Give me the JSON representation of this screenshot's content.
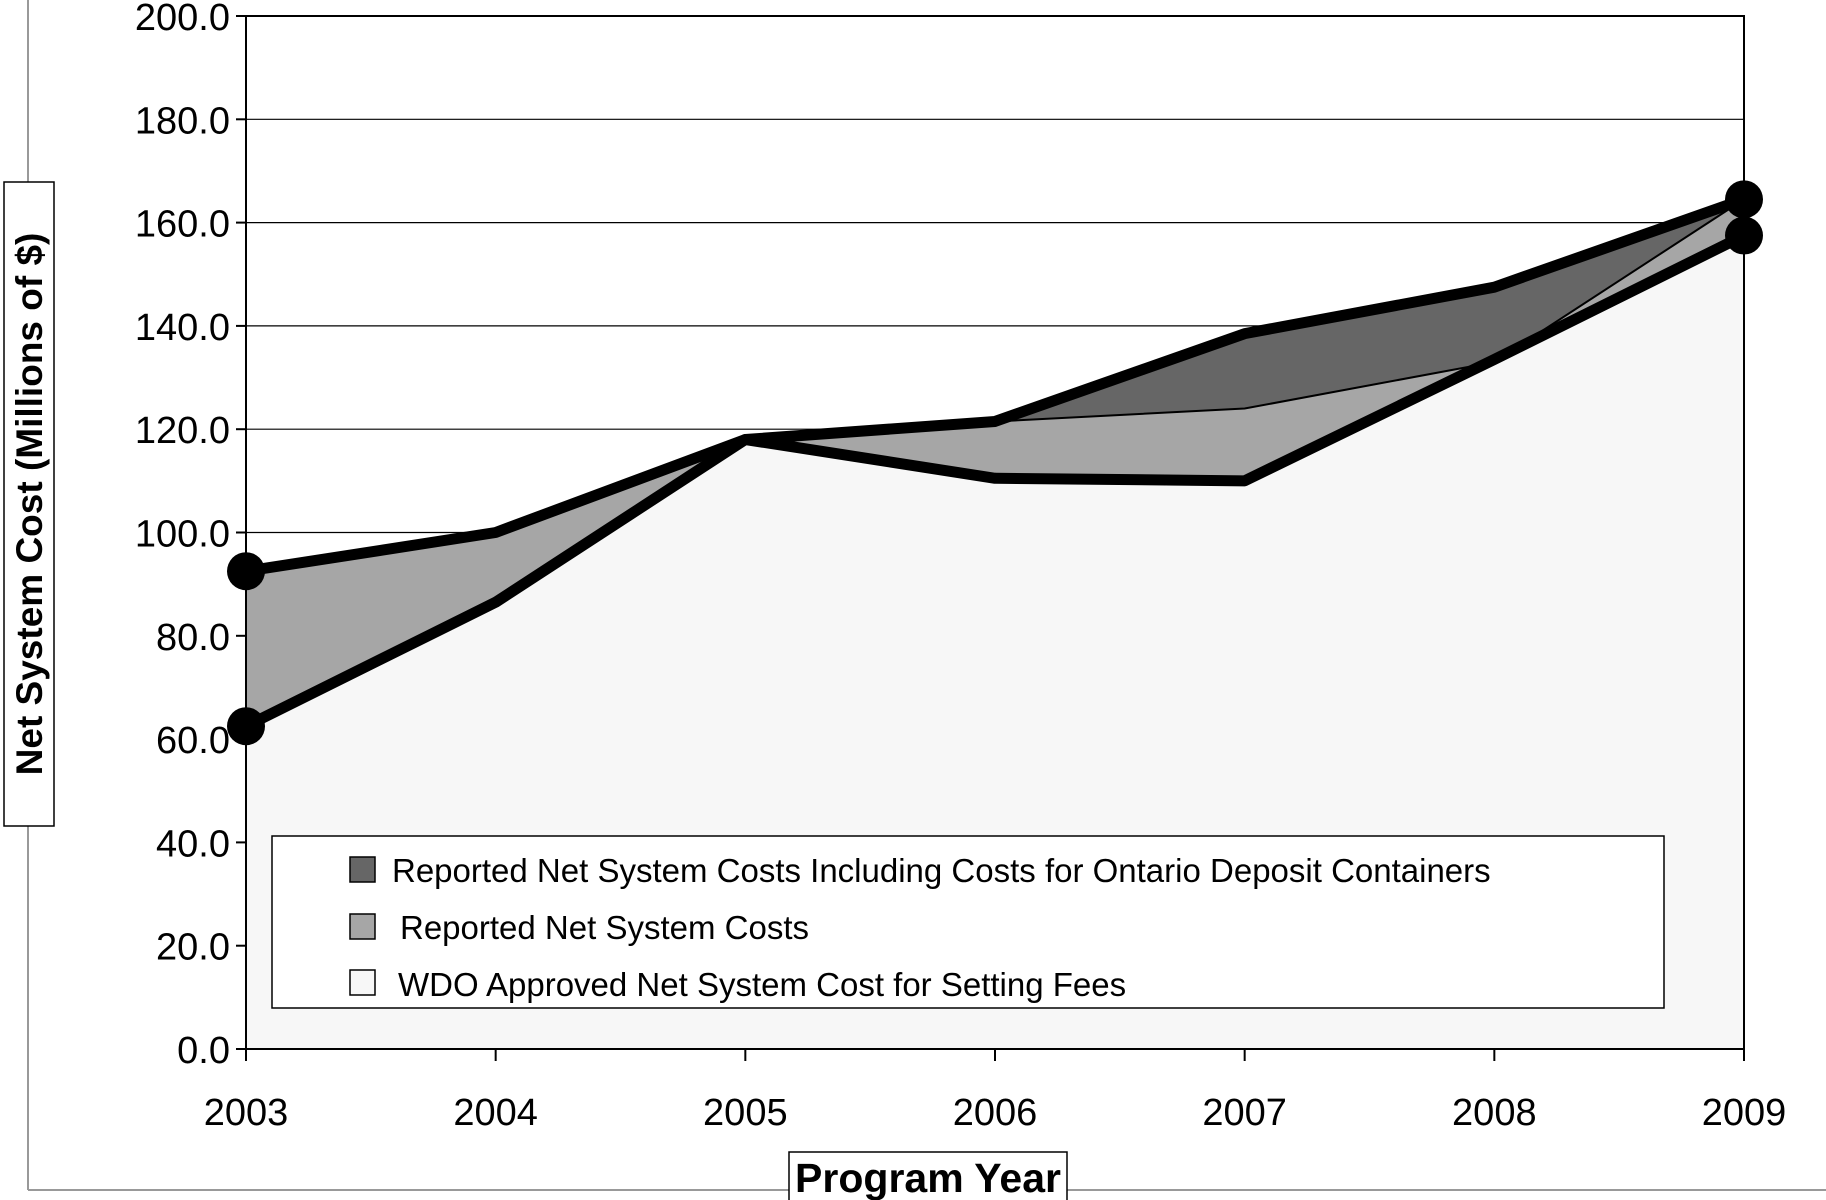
{
  "chart_data": {
    "type": "area",
    "title": "",
    "xlabel": "Program Year",
    "ylabel": "Net System Cost (Millions of $)",
    "ylim": [
      0,
      200
    ],
    "y_tick_step": 20,
    "y_tick_labels": [
      "0.0",
      "20.0",
      "40.0",
      "60.0",
      "80.0",
      "100.0",
      "120.0",
      "140.0",
      "160.0",
      "180.0",
      "200.0"
    ],
    "categories": [
      "2003",
      "2004",
      "2005",
      "2006",
      "2007",
      "2008",
      "2009"
    ],
    "grid": true,
    "legend_position": "bottom-inside",
    "series": [
      {
        "name": "Reported Net System Costs Including Costs for Ontario Deposit Containers",
        "values": [
          92.5,
          100.0,
          118.0,
          121.5,
          138.5,
          147.5,
          164.5
        ],
        "color": "#666666"
      },
      {
        "name": "Reported Net System Costs",
        "values": [
          92.5,
          100.0,
          118.0,
          121.5,
          124.0,
          133.0,
          164.5
        ],
        "color": "#a6a6a6"
      },
      {
        "name": "WDO Approved Net System Cost for Setting Fees",
        "values": [
          62.5,
          86.5,
          118.0,
          110.5,
          110.0,
          133.5,
          157.5
        ],
        "color": "#f7f7f7"
      }
    ],
    "markers": {
      "Reported Net System Costs Including Costs for Ontario Deposit Containers": [
        "2003",
        "2009"
      ],
      "WDO Approved Net System Cost for Setting Fees": [
        "2003",
        "2009"
      ]
    }
  }
}
